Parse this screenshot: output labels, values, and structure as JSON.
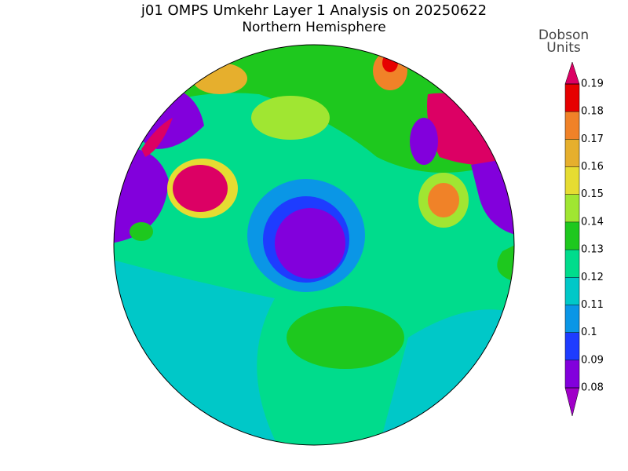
{
  "title": "j01 OMPS Umkehr Layer 1 Analysis on 20250622",
  "subtitle": "Northern Hemisphere",
  "colorbar": {
    "label": [
      "Dobson",
      "Units"
    ],
    "ticks": [
      0.08,
      0.09,
      0.1,
      0.11,
      0.12,
      0.13,
      0.14,
      0.15,
      0.16,
      0.17,
      0.18,
      0.19
    ],
    "colors": [
      "#a000c8",
      "#8200dc",
      "#1e3cff",
      "#0a96e6",
      "#00c8c8",
      "#00dc8c",
      "#1ec81e",
      "#a0e632",
      "#e6dc32",
      "#e6af2d",
      "#f08228",
      "#e60000",
      "#dc0064"
    ]
  }
}
